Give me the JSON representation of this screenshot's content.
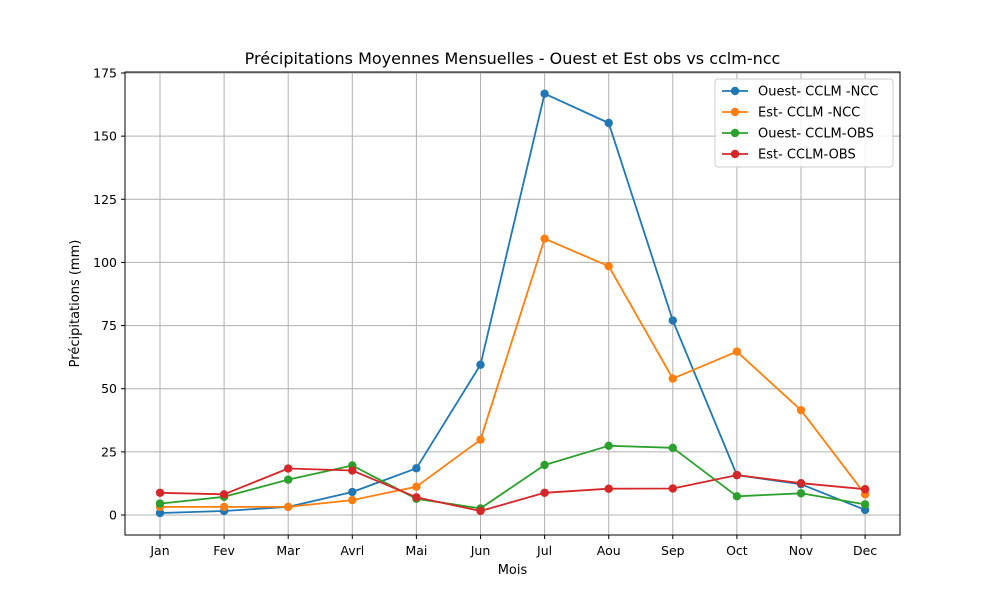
{
  "chart_data": {
    "type": "line",
    "title": "Précipitations Moyennes Mensuelles - Ouest et Est obs vs cclm-ncc",
    "xlabel": "Mois",
    "ylabel": "Précipitations (mm)",
    "categories": [
      "Jan",
      "Fev",
      "Mar",
      "Avrl",
      "Mai",
      "Jun",
      "Jul",
      "Aou",
      "Sep",
      "Oct",
      "Nov",
      "Dec"
    ],
    "ylim": [
      -8,
      175
    ],
    "yticks": [
      0,
      25,
      50,
      75,
      100,
      125,
      150,
      175
    ],
    "grid": true,
    "legend_position": "top-right",
    "series": [
      {
        "name": "Ouest- CCLM -NCC",
        "color": "#1f77b4",
        "values": [
          0.8,
          1.6,
          3.2,
          9.1,
          18.5,
          59.5,
          166.8,
          155.2,
          77.0,
          15.8,
          12.2,
          2.0
        ]
      },
      {
        "name": "Est- CCLM -NCC",
        "color": "#ff7f0e",
        "values": [
          3.2,
          3.2,
          3.2,
          5.9,
          11.2,
          29.8,
          109.4,
          98.5,
          54.0,
          64.7,
          41.5,
          8.2
        ]
      },
      {
        "name": "Ouest- CCLM-OBS",
        "color": "#2ca02c",
        "values": [
          4.5,
          7.2,
          14.0,
          19.6,
          6.4,
          2.6,
          19.8,
          27.4,
          26.6,
          7.4,
          8.6,
          4.2
        ]
      },
      {
        "name": "Est- CCLM-OBS",
        "color": "#d62728",
        "values": [
          8.8,
          8.2,
          18.4,
          17.6,
          7.0,
          1.6,
          8.8,
          10.4,
          10.5,
          15.8,
          12.6,
          10.2
        ]
      }
    ]
  }
}
